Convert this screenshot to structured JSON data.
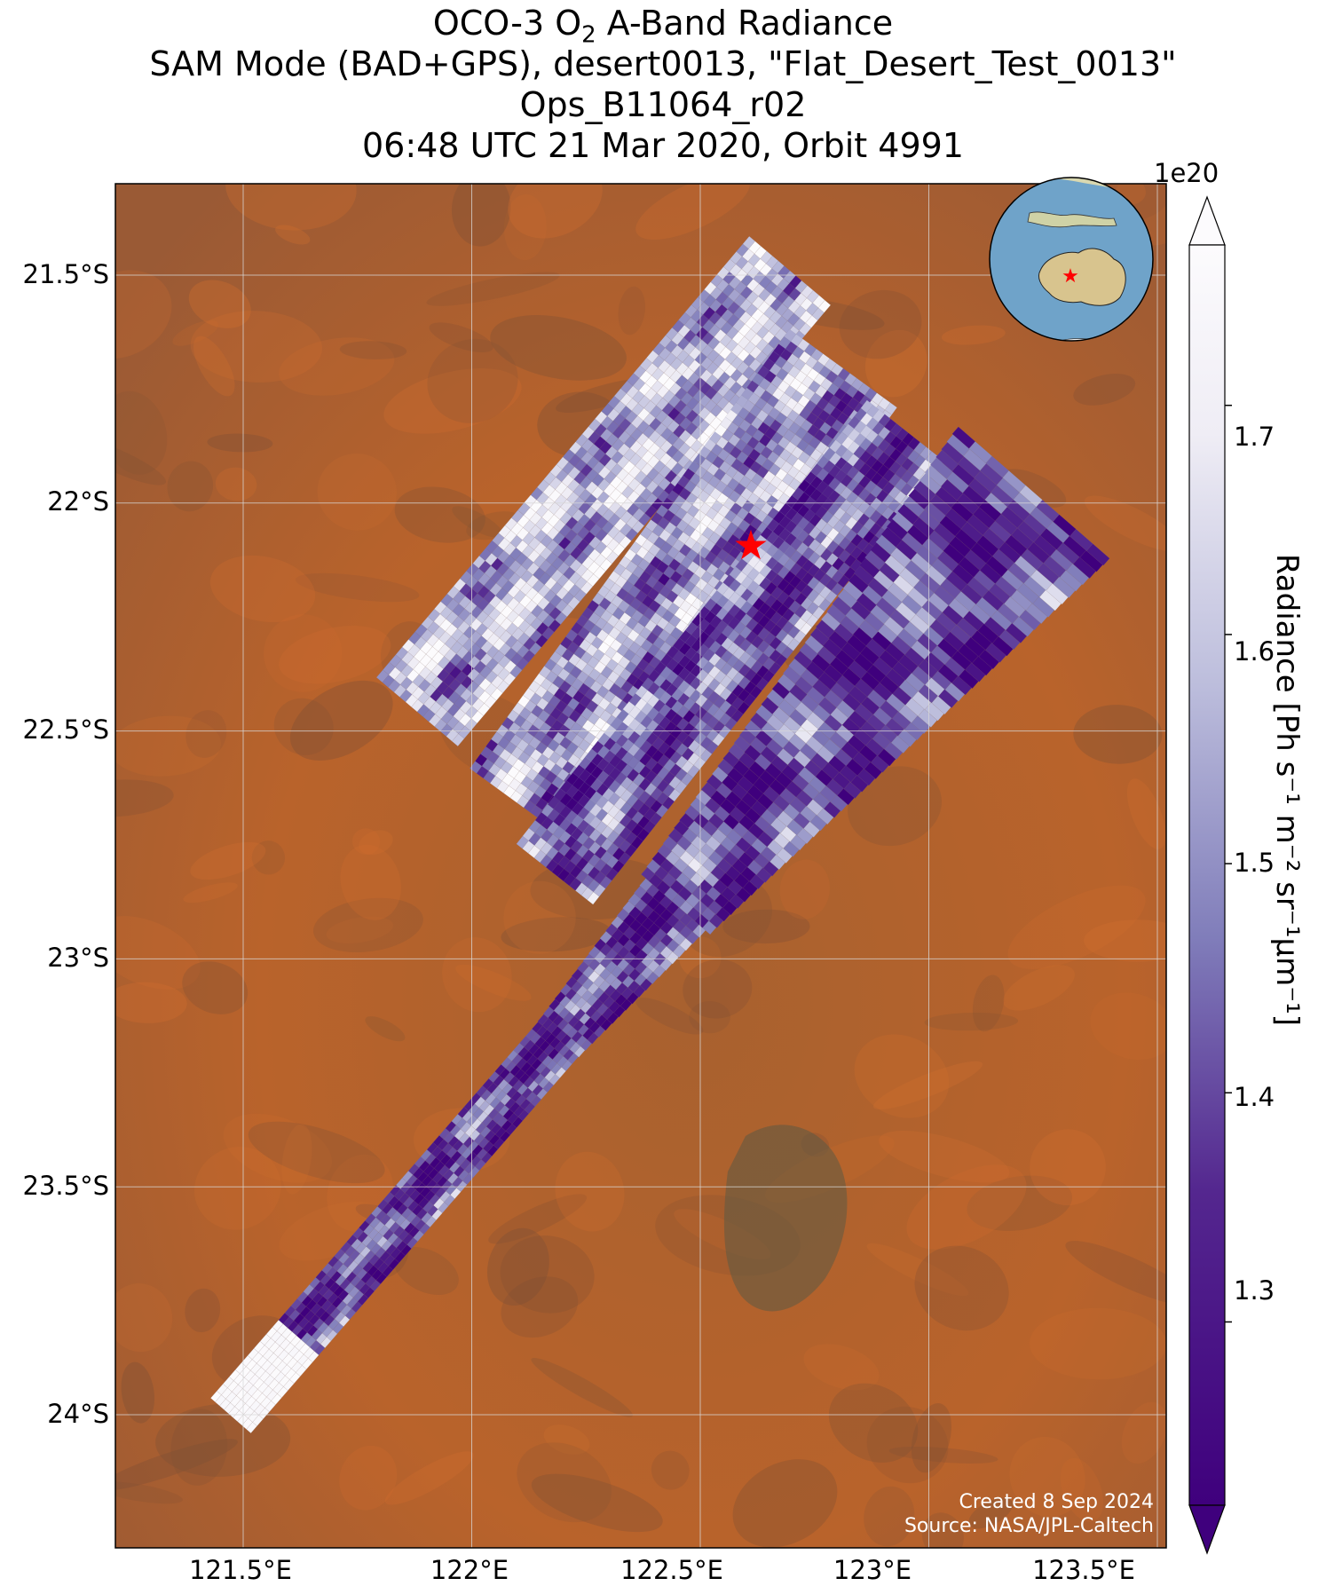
{
  "title": {
    "line1_pre": "OCO-3 O",
    "line1_sub": "2",
    "line1_post": " A-Band Radiance",
    "line2": "SAM Mode (BAD+GPS), desert0013, \"Flat_Desert_Test_0013\"",
    "line3": "Ops_B11064_r02",
    "line4": "06:48 UTC 21 Mar 2020, Orbit 4991"
  },
  "map": {
    "lon_ticks": [
      "121.5°E",
      "122°E",
      "122.5°E",
      "123°E",
      "123.5°E"
    ],
    "lat_ticks": [
      "21.5°S",
      "22°S",
      "22.5°S",
      "23°S",
      "23.5°S",
      "24°S"
    ],
    "target_marker": {
      "lon": 122.7,
      "lat": -22.11,
      "symbol": "★",
      "color": "#ff0000"
    },
    "credit_line1": "Created 8 Sep 2024",
    "credit_line2": "Source: NASA/JPL-Caltech"
  },
  "colorbar": {
    "title": "Radiance [Ph s⁻¹ m⁻² sr⁻¹μm⁻¹]",
    "exponent": "1e20",
    "ticks": [
      "1.3",
      "1.4",
      "1.5",
      "1.6",
      "1.7"
    ],
    "tick_values": [
      1.3,
      1.4,
      1.5,
      1.6,
      1.7
    ],
    "range": [
      1.22,
      1.77
    ],
    "colormap": "Purples_r",
    "color_low": "#3f007d",
    "color_high": "#fcfbfd"
  },
  "inset_globe": {
    "marker_symbol": "★",
    "marker_color": "#ff0000"
  },
  "colors": {
    "land": "#b5602b",
    "land_dark": "#8a5232",
    "ocean": "#6a9ec4",
    "grid": "#d8d8d8"
  }
}
